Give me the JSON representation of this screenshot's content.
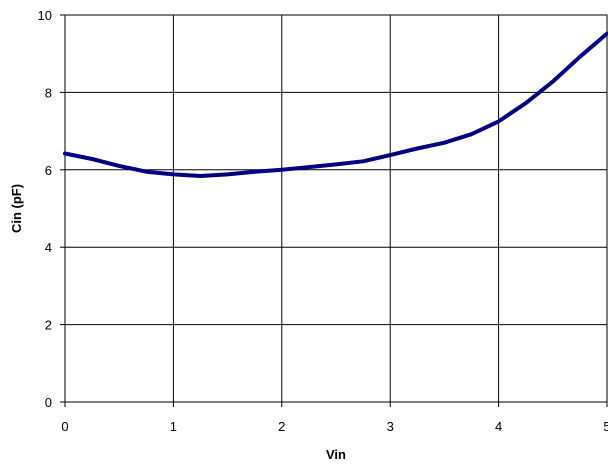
{
  "chart_data": {
    "type": "line",
    "title": "",
    "xlabel": "Vin",
    "ylabel": "Cin (pF)",
    "xlim": [
      0,
      5
    ],
    "ylim": [
      0,
      10
    ],
    "grid": true,
    "x_ticks": [
      0,
      1,
      2,
      3,
      4,
      5
    ],
    "y_ticks": [
      0,
      2,
      4,
      6,
      8,
      10
    ],
    "x_tick_labels": [
      "0",
      "1",
      "2",
      "3",
      "4",
      "5"
    ],
    "y_tick_labels": [
      "0",
      "2",
      "4",
      "6",
      "8",
      "10"
    ],
    "series": [
      {
        "color": "#000080",
        "x": [
          0,
          0.25,
          0.5,
          0.75,
          1.0,
          1.25,
          1.5,
          1.75,
          2.0,
          2.25,
          2.5,
          2.75,
          3.0,
          3.25,
          3.5,
          3.75,
          4.0,
          4.25,
          4.5,
          4.75,
          5.0
        ],
        "y": [
          6.42,
          6.28,
          6.1,
          5.95,
          5.88,
          5.84,
          5.88,
          5.95,
          6.0,
          6.07,
          6.14,
          6.22,
          6.38,
          6.55,
          6.7,
          6.92,
          7.25,
          7.72,
          8.28,
          8.92,
          9.52
        ]
      }
    ]
  }
}
